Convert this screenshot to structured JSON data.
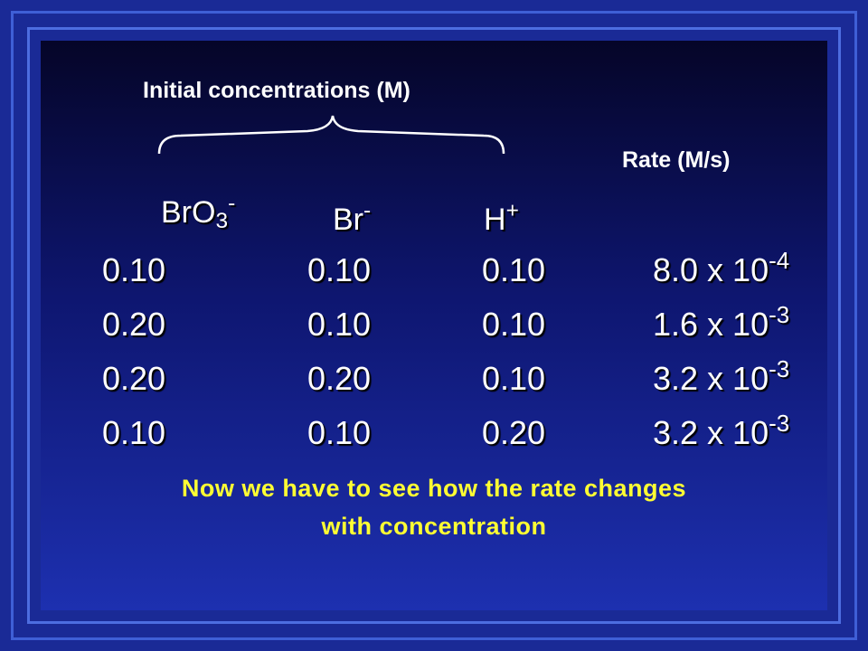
{
  "header": {
    "group_label": "Initial concentrations (M)",
    "rate_label": "Rate (M/s)"
  },
  "columns": [
    {
      "base": "BrO",
      "sub": "3",
      "sup": "-"
    },
    {
      "base": "Br",
      "sup": "-"
    },
    {
      "base": "H",
      "sup": "+"
    }
  ],
  "table": {
    "rows": [
      {
        "cells": [
          "0.10",
          "0.10",
          "0.10"
        ],
        "rate": {
          "base": "8.0 x 10",
          "sup": "-4"
        }
      },
      {
        "cells": [
          "0.20",
          "0.10",
          "0.10"
        ],
        "rate": {
          "base": "1.6 x 10",
          "sup": "-3"
        }
      },
      {
        "cells": [
          "0.20",
          "0.20",
          "0.10"
        ],
        "rate": {
          "base": "3.2 x 10",
          "sup": "-3"
        }
      },
      {
        "cells": [
          "0.10",
          "0.10",
          "0.20"
        ],
        "rate": {
          "base": "3.2 x 10",
          "sup": "-3"
        }
      }
    ]
  },
  "footer": {
    "lines": [
      "Now we have to see how the rate changes",
      "with concentration"
    ]
  }
}
